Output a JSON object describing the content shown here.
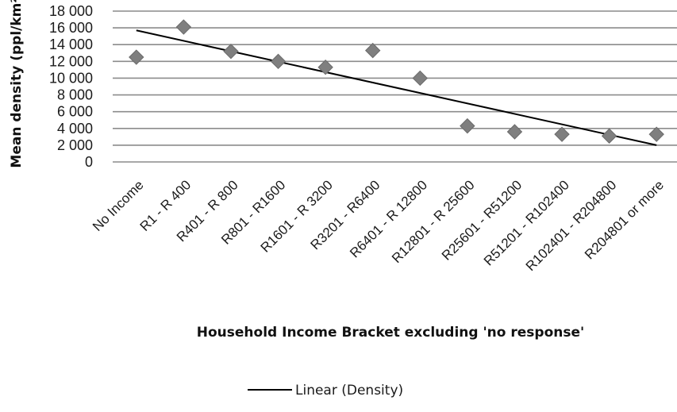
{
  "chart_data": {
    "type": "scatter",
    "title": "",
    "xlabel": "Household Income Bracket excluding 'no response'",
    "ylabel": "Mean density (ppl/km²)",
    "ylim": [
      0,
      18000
    ],
    "y_ticks": [
      "0",
      "2 000",
      "4 000",
      "6 000",
      "8 000",
      "10 000",
      "12 000",
      "14 000",
      "16 000",
      "18 000"
    ],
    "grid": true,
    "categories": [
      "No Income",
      "R1 - R 400",
      "R401 - R 800",
      "R801 - R1600",
      "R1601 - R 3200",
      "R3201 - R6400",
      "R6401 - R 12800",
      "R12801 - R 25600",
      "R25601 - R51200",
      "R51201 - R102400",
      "R102401 - R204800",
      "R204801 or more"
    ],
    "series": [
      {
        "values": [
          12500,
          16100,
          13200,
          12000,
          11300,
          13300,
          10000,
          4300,
          3600,
          3300,
          3100,
          3300
        ],
        "marker": "diamond",
        "color": "#7f7f7f"
      }
    ],
    "trendline": {
      "name": "Linear (Density)",
      "type": "linear",
      "start": 15700,
      "end": 2000,
      "color": "#000000"
    },
    "legend": {
      "position": "bottom",
      "entries": [
        "Linear (Density)"
      ]
    }
  }
}
